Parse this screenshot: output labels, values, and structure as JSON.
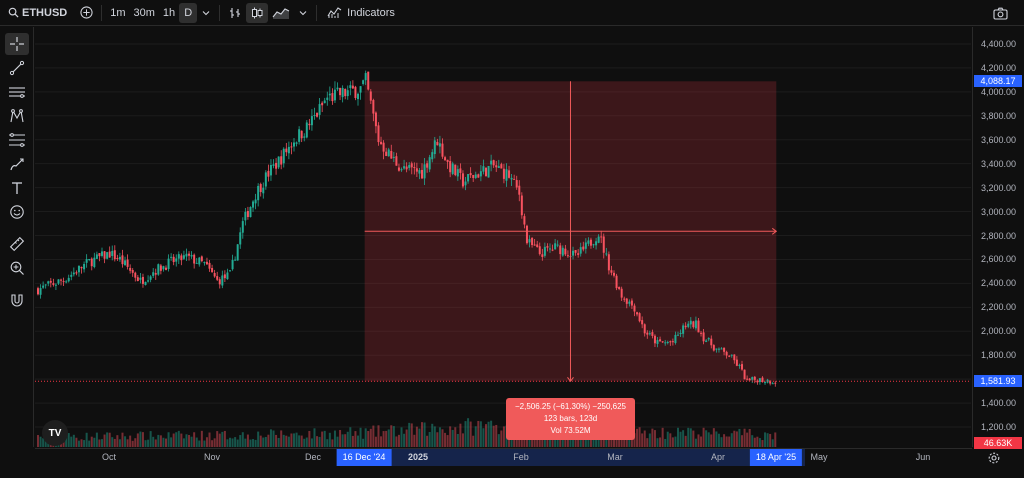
{
  "toolbar": {
    "symbol": "ETHUSD",
    "intervals": [
      "1m",
      "30m",
      "1h",
      "D"
    ],
    "active_interval": "D",
    "indicators_label": "Indicators"
  },
  "price_axis": {
    "ticks": [
      "4,400.00",
      "4,200.00",
      "4,000.00",
      "3,800.00",
      "3,600.00",
      "3,400.00",
      "3,200.00",
      "3,000.00",
      "2,800.00",
      "2,600.00",
      "2,400.00",
      "2,200.00",
      "2,000.00",
      "1,800.00",
      "1,600.00",
      "1,400.00",
      "1,200.00"
    ],
    "tick_values": [
      4400,
      4200,
      4000,
      3800,
      3600,
      3400,
      3200,
      3000,
      2800,
      2600,
      2400,
      2200,
      2000,
      1800,
      1600,
      1400,
      1200
    ],
    "range_top_label": "4,088.17",
    "range_top_value": 4088.17,
    "last_price_label": "1,581.93",
    "last_price_value": 1581.93,
    "volume_label": "46.63K",
    "colors": {
      "range_top": "#2962ff",
      "last_price": "#2962ff",
      "volume": "#f23645"
    }
  },
  "time_axis": {
    "ticks": [
      {
        "label": "Oct",
        "bold": false
      },
      {
        "label": "Nov",
        "bold": false
      },
      {
        "label": "Dec",
        "bold": false
      },
      {
        "label": "2025",
        "bold": true
      },
      {
        "label": "Feb",
        "bold": false
      },
      {
        "label": "Mar",
        "bold": false
      },
      {
        "label": "Apr",
        "bold": false
      },
      {
        "label": "May",
        "bold": false
      },
      {
        "label": "Jun",
        "bold": false
      }
    ],
    "range_start_label": "16 Dec '24",
    "range_end_label": "18 Apr '25"
  },
  "measure": {
    "change_label": "−2,506.25 (−61.30%) −250,625",
    "bars_label": "123 bars, 123d",
    "volume_label": "Vol 73.52M",
    "start_price": 4088.17,
    "end_price": 1581.93,
    "color": "#f05a5a"
  },
  "chart_data": {
    "type": "candlestick",
    "symbol": "ETHUSD",
    "interval": "D",
    "ylim": [
      1100,
      4500
    ],
    "x_ticks": [
      "Oct",
      "Nov",
      "Dec",
      "2025",
      "Feb",
      "Mar",
      "Apr",
      "May",
      "Jun"
    ],
    "close_anchors": [
      [
        0,
        2350
      ],
      [
        10,
        2430
      ],
      [
        20,
        2580
      ],
      [
        28,
        2650
      ],
      [
        32,
        2600
      ],
      [
        40,
        2420
      ],
      [
        45,
        2500
      ],
      [
        52,
        2580
      ],
      [
        58,
        2620
      ],
      [
        65,
        2560
      ],
      [
        70,
        2420
      ],
      [
        75,
        2470
      ],
      [
        80,
        2900
      ],
      [
        85,
        3150
      ],
      [
        90,
        3320
      ],
      [
        95,
        3450
      ],
      [
        100,
        3600
      ],
      [
        105,
        3700
      ],
      [
        110,
        3850
      ],
      [
        113,
        3950
      ],
      [
        118,
        3980
      ],
      [
        122,
        4000
      ],
      [
        126,
        4030
      ],
      [
        128,
        4088
      ],
      [
        133,
        3600
      ],
      [
        138,
        3450
      ],
      [
        143,
        3350
      ],
      [
        150,
        3330
      ],
      [
        156,
        3600
      ],
      [
        160,
        3400
      ],
      [
        166,
        3250
      ],
      [
        172,
        3320
      ],
      [
        178,
        3380
      ],
      [
        184,
        3300
      ],
      [
        188,
        3150
      ],
      [
        191,
        2750
      ],
      [
        196,
        2650
      ],
      [
        202,
        2700
      ],
      [
        206,
        2680
      ],
      [
        210,
        2620
      ],
      [
        214,
        2700
      ],
      [
        219,
        2820
      ],
      [
        223,
        2550
      ],
      [
        228,
        2300
      ],
      [
        233,
        2200
      ],
      [
        237,
        2000
      ],
      [
        242,
        1900
      ],
      [
        248,
        1910
      ],
      [
        253,
        2050
      ],
      [
        257,
        2060
      ],
      [
        260,
        1950
      ],
      [
        265,
        1850
      ],
      [
        270,
        1800
      ],
      [
        274,
        1700
      ],
      [
        277,
        1580
      ],
      [
        281,
        1600
      ],
      [
        284,
        1590
      ],
      [
        288,
        1582
      ]
    ],
    "volume_anchors": [
      [
        0,
        0.25
      ],
      [
        80,
        0.3
      ],
      [
        125,
        0.35
      ],
      [
        191,
        0.6
      ],
      [
        195,
        1.0
      ],
      [
        198,
        0.4
      ],
      [
        260,
        0.35
      ],
      [
        288,
        0.3
      ]
    ],
    "measure_range": {
      "start": "16 Dec '24",
      "end": "18 Apr '25",
      "high": 4088.17,
      "low": 1581.93
    },
    "last_price": 1581.93
  }
}
